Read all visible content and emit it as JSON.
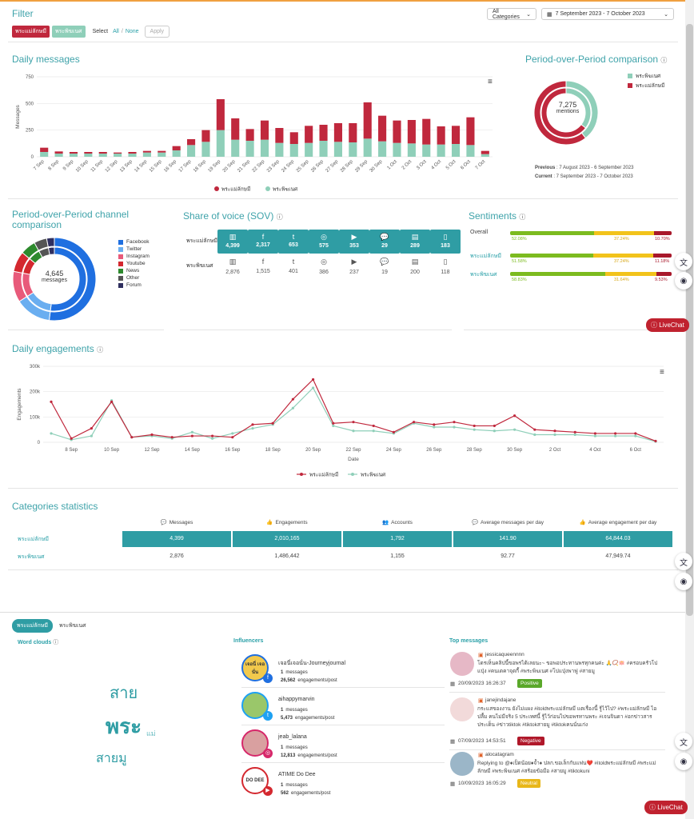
{
  "filter": {
    "title": "Filter",
    "chips": [
      {
        "label": "พระแม่ลักษมี",
        "color": "#c0283d"
      },
      {
        "label": "พระพิฆเนศ",
        "color": "#8fcfb9"
      }
    ],
    "select_label": "Select",
    "all_label": "All",
    "none_label": "None",
    "separator": "/",
    "apply_label": "Apply",
    "categories_value": "All Categories",
    "date_range": "7 September 2023 - 7 October 2023"
  },
  "daily_messages": {
    "title": "Daily messages",
    "menu_icon": "hamburger-icon"
  },
  "chart_data": [
    {
      "type": "bar",
      "title": "Daily messages",
      "ylabel": "Messages",
      "xlabel": "",
      "ylim": [
        0,
        750
      ],
      "yticks": [
        0,
        250,
        500,
        750
      ],
      "stacked": true,
      "categories": [
        "7 Sep",
        "8 Sep",
        "9 Sep",
        "10 Sep",
        "11 Sep",
        "12 Sep",
        "13 Sep",
        "14 Sep",
        "15 Sep",
        "16 Sep",
        "17 Sep",
        "18 Sep",
        "19 Sep",
        "20 Sep",
        "21 Sep",
        "22 Sep",
        "23 Sep",
        "24 Sep",
        "25 Sep",
        "26 Sep",
        "27 Sep",
        "28 Sep",
        "29 Sep",
        "30 Sep",
        "1 Oct",
        "2 Oct",
        "3 Oct",
        "4 Oct",
        "5 Oct",
        "6 Oct",
        "7 Oct"
      ],
      "series": [
        {
          "name": "พระแม่ลักษมี",
          "color": "#c0283d",
          "values": [
            40,
            20,
            15,
            15,
            15,
            10,
            15,
            15,
            15,
            40,
            55,
            110,
            290,
            200,
            110,
            180,
            140,
            110,
            160,
            150,
            175,
            180,
            340,
            240,
            210,
            220,
            240,
            170,
            170,
            260,
            30
          ]
        },
        {
          "name": "พระพิฆเนศ",
          "color": "#8fcfb9",
          "values": [
            45,
            30,
            30,
            30,
            30,
            30,
            30,
            40,
            40,
            60,
            110,
            140,
            250,
            160,
            150,
            160,
            130,
            120,
            130,
            150,
            140,
            135,
            170,
            145,
            130,
            125,
            115,
            115,
            120,
            110,
            25
          ]
        }
      ],
      "legend": "bottom"
    },
    {
      "type": "pie",
      "title": "Period-over-Period comparison",
      "center_value": "7,275",
      "center_label": "mentions",
      "rings": [
        {
          "label": "Current",
          "slices": [
            {
              "name": "พระพิฆเนศ",
              "value": 2876
            },
            {
              "name": "พระแม่ลักษมี",
              "value": 4399
            }
          ]
        },
        {
          "label": "Previous",
          "slices": [
            {
              "name": "พระพิฆเนศ",
              "value": 1650
            },
            {
              "name": "พระแม่ลักษมี",
              "value": 2995
            }
          ]
        }
      ],
      "legend": "top-right"
    },
    {
      "type": "pie",
      "title": "Period-over-Period channel comparison",
      "center_value": "4,645",
      "center_label": "messages",
      "slices": [
        {
          "name": "Facebook",
          "value": 52
        },
        {
          "name": "Twitter",
          "value": 14
        },
        {
          "name": "Instagram",
          "value": 12
        },
        {
          "name": "Youtube",
          "value": 8
        },
        {
          "name": "News",
          "value": 6
        },
        {
          "name": "Other",
          "value": 5
        },
        {
          "name": "Forum",
          "value": 3
        }
      ],
      "legend": "right"
    },
    {
      "type": "line",
      "title": "Daily engagements",
      "xlabel": "Date",
      "ylabel": "Engagements",
      "ylim": [
        0,
        300000
      ],
      "yticks": [
        "0",
        "100k",
        "200k",
        "300k"
      ],
      "x_ticks": [
        "8 Sep",
        "10 Sep",
        "12 Sep",
        "14 Sep",
        "16 Sep",
        "18 Sep",
        "20 Sep",
        "22 Sep",
        "24 Sep",
        "26 Sep",
        "28 Sep",
        "30 Sep",
        "2 Oct",
        "4 Oct",
        "6 Oct"
      ],
      "x": [
        "7 Sep",
        "8 Sep",
        "9 Sep",
        "10 Sep",
        "11 Sep",
        "12 Sep",
        "13 Sep",
        "14 Sep",
        "15 Sep",
        "16 Sep",
        "17 Sep",
        "18 Sep",
        "19 Sep",
        "20 Sep",
        "21 Sep",
        "22 Sep",
        "23 Sep",
        "24 Sep",
        "25 Sep",
        "26 Sep",
        "27 Sep",
        "28 Sep",
        "29 Sep",
        "30 Sep",
        "1 Oct",
        "2 Oct",
        "3 Oct",
        "4 Oct",
        "5 Oct",
        "6 Oct",
        "7 Oct"
      ],
      "series": [
        {
          "name": "พระแม่ลักษมี",
          "color": "#c0283d",
          "values": [
            160000,
            15000,
            55000,
            160000,
            20000,
            30000,
            20000,
            25000,
            25000,
            20000,
            70000,
            75000,
            170000,
            248000,
            75000,
            80000,
            65000,
            40000,
            80000,
            70000,
            80000,
            65000,
            65000,
            105000,
            50000,
            45000,
            40000,
            35000,
            35000,
            35000,
            5000
          ]
        },
        {
          "name": "พระพิฆเนศ",
          "color": "#8fcfb9",
          "values": [
            35000,
            10000,
            25000,
            165000,
            20000,
            25000,
            15000,
            40000,
            15000,
            35000,
            55000,
            70000,
            135000,
            215000,
            65000,
            45000,
            45000,
            35000,
            75000,
            60000,
            60000,
            50000,
            45000,
            50000,
            30000,
            30000,
            30000,
            25000,
            25000,
            25000,
            3000
          ]
        }
      ],
      "legend": "bottom"
    }
  ],
  "pop": {
    "title": "Period-over-Period comparison",
    "help_icon": "help-icon",
    "center_value": "7,275",
    "center_label": "mentions",
    "legend": [
      {
        "label": "พระพิฆเนศ",
        "color": "#8fcfb9"
      },
      {
        "label": "พระแม่ลักษมี",
        "color": "#c0283d"
      }
    ],
    "previous_label": "Previous",
    "previous_value": ": 7 August 2023 - 6 September 2023",
    "current_label": "Current",
    "current_value": ": 7 September 2023 - 7 October 2023"
  },
  "channel": {
    "title": "Period-over-Period channel comparison",
    "center_value": "4,645",
    "center_label": "messages",
    "legend": [
      {
        "label": "Facebook",
        "color": "#1f6fe0"
      },
      {
        "label": "Twitter",
        "color": "#6aaef0"
      },
      {
        "label": "Instagram",
        "color": "#e85a7a"
      },
      {
        "label": "Youtube",
        "color": "#d4282f"
      },
      {
        "label": "News",
        "color": "#2d8a2d"
      },
      {
        "label": "Other",
        "color": "#555555"
      },
      {
        "label": "Forum",
        "color": "#2f2f5f"
      }
    ]
  },
  "sov": {
    "title": "Share of voice (SOV)",
    "rows": [
      {
        "label": "พระแม่ลักษมี",
        "values": [
          "4,399",
          "2,317",
          "653",
          "575",
          "353",
          "29",
          "289",
          "183"
        ]
      },
      {
        "label": "พระพิฆเนศ",
        "values": [
          "2,876",
          "1,515",
          "401",
          "386",
          "237",
          "19",
          "200",
          "118"
        ]
      }
    ],
    "icons": [
      "▥",
      "f",
      "t",
      "◎",
      "▶",
      "💬",
      "▤",
      "▯"
    ]
  },
  "sentiments": {
    "title": "Sentiments",
    "rows": [
      {
        "label": "Overall",
        "pos": "52.08%",
        "neu": "37.24%",
        "neg": "10.70%",
        "pos_v": 52.08,
        "neu_v": 37.24,
        "neg_v": 10.7
      },
      {
        "label": "พระแม่ลักษมี",
        "pos": "51.58%",
        "neu": "37.24%",
        "neg": "11.18%",
        "pos_v": 51.58,
        "neu_v": 37.24,
        "neg_v": 11.18
      },
      {
        "label": "พระพิฆเนศ",
        "pos": "58.83%",
        "neu": "31.64%",
        "neg": "9.53%",
        "pos_v": 58.83,
        "neu_v": 31.64,
        "neg_v": 9.53
      }
    ]
  },
  "engagements": {
    "title": "Daily engagements"
  },
  "categories": {
    "title": "Categories statistics",
    "headers": [
      "Messages",
      "Engagements",
      "Accounts",
      "Average messages per day",
      "Average engagement per day"
    ],
    "rows": [
      {
        "label": "พระแม่ลักษมี",
        "values": [
          "4,399",
          "2,010,165",
          "1,792",
          "141.90",
          "64,844.03"
        ]
      },
      {
        "label": "พระพิฆเนศ",
        "values": [
          "2,876",
          "1,486,442",
          "1,155",
          "92.77",
          "47,949.74"
        ]
      }
    ]
  },
  "bottom_tabs": [
    "พระแม่ลักษมี",
    "พระพิฆเนศ"
  ],
  "wordcloud": {
    "title": "Word clouds",
    "words": [
      "สาย",
      "พระ",
      "แม่",
      "สายมู"
    ]
  },
  "influencers": {
    "title": "Influencers",
    "messages_label": "messages",
    "engagements_label": "engagements/post",
    "items": [
      {
        "name": "เจอนี่เจอนั่น-Journeyjournal",
        "messages": "1",
        "engagements": "26,562",
        "channel": "facebook",
        "avatar_text": "เจอนี่ เจอนั่น"
      },
      {
        "name": "aihappymarvin",
        "messages": "1",
        "engagements": "5,473",
        "channel": "twitter",
        "avatar_text": ""
      },
      {
        "name": "jeab_lalana",
        "messages": "1",
        "engagements": "12,813",
        "channel": "instagram",
        "avatar_text": ""
      },
      {
        "name": "ATIME Do Dee",
        "messages": "1",
        "engagements": "562",
        "channel": "youtube",
        "avatar_text": "DO DEE"
      }
    ]
  },
  "top_messages": {
    "title": "Top messages",
    "items": [
      {
        "user": "jessicaqueennnn",
        "text": "โดรเห็นคลิปนี้ขอพรได้เลยนะ~ ขอพอประทานพรทุกคนค่ะ 🙏📿🪷 #ครอบครัวโปแปุ่ง #คนเดคาจุดกี้ #พระพิฆเนศ #โปแปุ่งพาฟู #สายมู",
        "date": "20/09/2023 16:26:37",
        "sentiment": "Positive",
        "sentiment_color": "#5aa82a"
      },
      {
        "user": "janejindajane",
        "text": "กระแสของงาน ยังไม่แผง #itoldพระแม่ลักษมี แตเรื่องนี้ รู้ไว้ไป? #พระแม่ลักษมี ไอปลื้ม คนไม่มีจริง 5 ประเทศนี้ รู้ไว้ก่อนไปขอพรทานพระ #เจนจินดา #อกข่าวสารประเด็น #ข่าวtiktok #tiktokสายมู #tiktokคนนั่นเก่ง",
        "date": "07/09/2023 14:53:51",
        "sentiment": "Negative",
        "sentiment_color": "#b0182a"
      },
      {
        "user": "alocatagram",
        "text": "Replying to @♦เป็ดน้อย♦จ้ำ♦ ปลก.ขอเล็กกับแฟน❤️ #itoldพระแม่ลักษมี #พระแม่ลักษมี #พระพิฆเนศ #สร้อยข้อมือ #สายมู #tiktokuni",
        "date": "10/09/2023 16:05:29",
        "sentiment": "Neutral",
        "sentiment_color": "#e8b71a"
      }
    ]
  },
  "widgets": {
    "livechat_label": "LiveChat",
    "translate_icon": "translate-icon",
    "bot_icon": "bot-icon"
  }
}
